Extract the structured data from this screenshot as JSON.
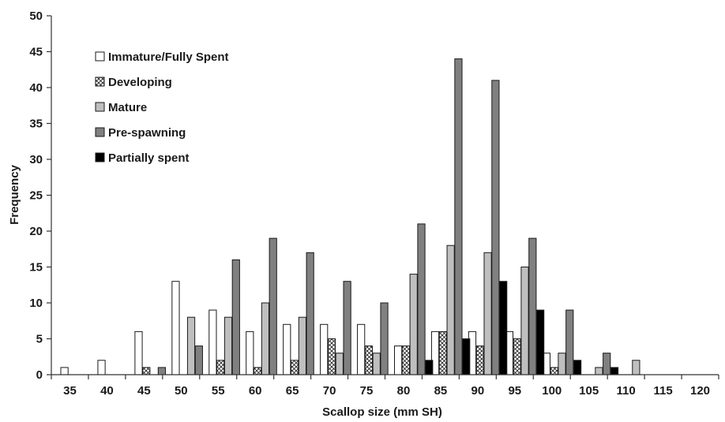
{
  "chart_data": {
    "type": "bar",
    "title": "",
    "xlabel": "Scallop size (mm SH)",
    "ylabel": "Frequency",
    "ylim": [
      0,
      50
    ],
    "yticks": [
      0,
      5,
      10,
      15,
      20,
      25,
      30,
      35,
      40,
      45,
      50
    ],
    "categories": [
      "35",
      "40",
      "45",
      "50",
      "55",
      "60",
      "65",
      "70",
      "75",
      "80",
      "85",
      "90",
      "95",
      "100",
      "105",
      "110",
      "115",
      "120"
    ],
    "legend_position": "top-left",
    "grid": false,
    "series": [
      {
        "name": "Immature/Fully Spent",
        "color": "#ffffff",
        "pattern": "none",
        "values": [
          1,
          2,
          6,
          13,
          9,
          6,
          7,
          7,
          7,
          4,
          6,
          6,
          6,
          3,
          0,
          0,
          0,
          0
        ]
      },
      {
        "name": "Developing",
        "color": "#ffffff",
        "pattern": "crosshatch",
        "values": [
          0,
          0,
          1,
          0,
          2,
          1,
          2,
          5,
          4,
          4,
          6,
          4,
          5,
          1,
          0,
          0,
          0,
          0
        ]
      },
      {
        "name": "Mature",
        "color": "#bfbfbf",
        "pattern": "none",
        "values": [
          0,
          0,
          0,
          8,
          8,
          10,
          8,
          3,
          3,
          14,
          18,
          17,
          15,
          3,
          1,
          2,
          0,
          0
        ]
      },
      {
        "name": "Pre-spawning",
        "color": "#808080",
        "pattern": "none",
        "values": [
          0,
          0,
          1,
          4,
          16,
          19,
          17,
          13,
          10,
          21,
          44,
          41,
          19,
          9,
          3,
          0,
          0,
          0
        ]
      },
      {
        "name": "Partially spent",
        "color": "#000000",
        "pattern": "none",
        "values": [
          0,
          0,
          0,
          0,
          0,
          0,
          0,
          0,
          0,
          2,
          5,
          13,
          9,
          2,
          1,
          0,
          0,
          0
        ]
      }
    ]
  }
}
